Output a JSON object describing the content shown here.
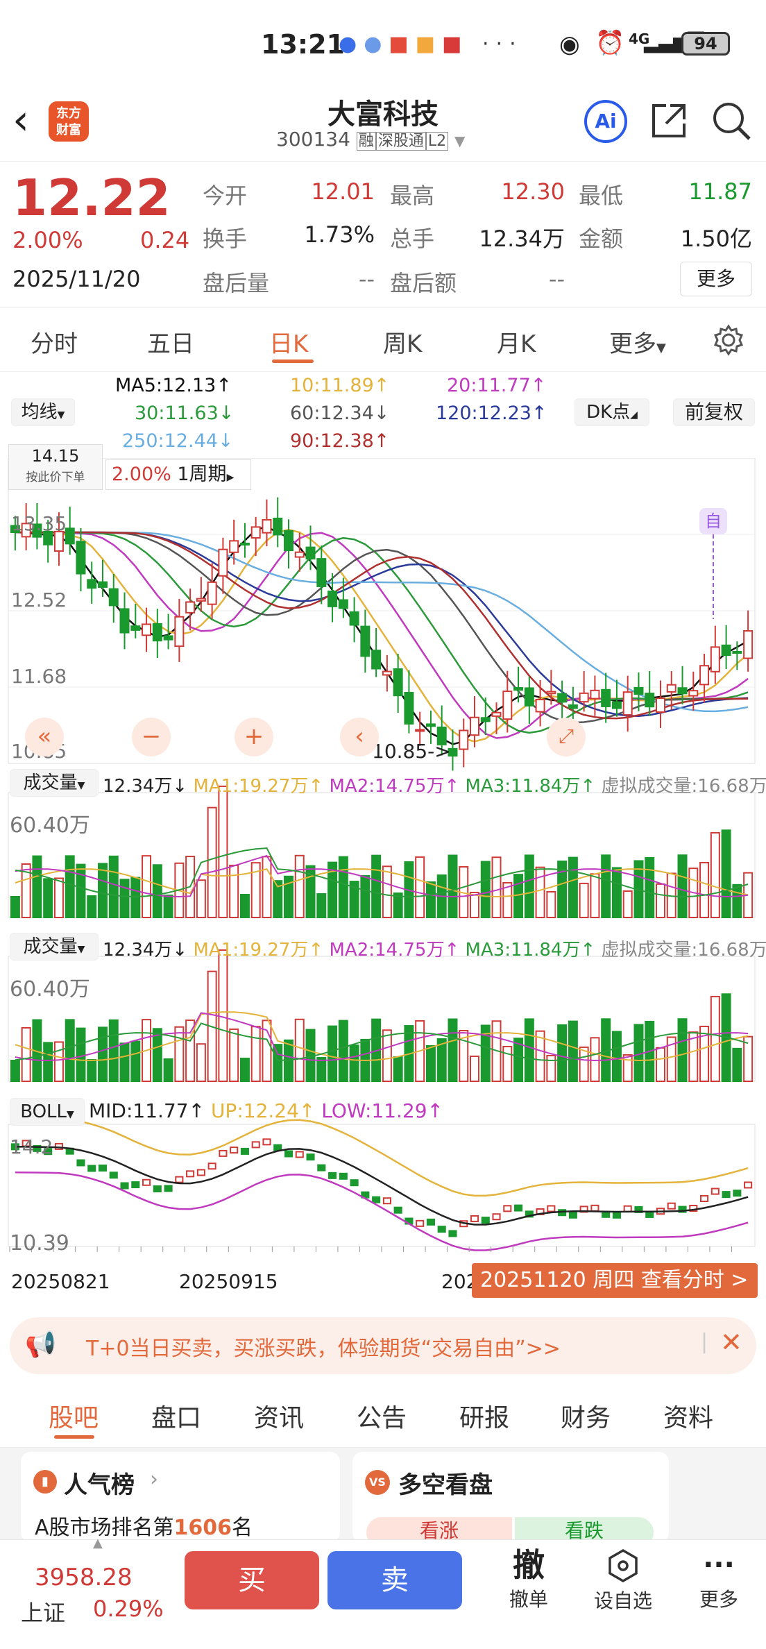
{
  "status": {
    "time": "13:21",
    "battery": "94",
    "network": "4G"
  },
  "header": {
    "title": "大富科技",
    "code": "300134",
    "tag_rong": "融",
    "tag_connect": "深股通",
    "tag_level": "L2",
    "logo_line1": "东方",
    "logo_line2": "财富",
    "ai_label": "Ai"
  },
  "quote": {
    "price": "12.22",
    "pct": "2.00%",
    "chg": "0.24",
    "date": "2025/11/20",
    "open_label": "今开",
    "open": "12.01",
    "high_label": "最高",
    "high": "12.30",
    "low_label": "最低",
    "low": "11.87",
    "turnover_label": "换手",
    "turnover": "1.73%",
    "volume_label": "总手",
    "volume": "12.34万",
    "amount_label": "金额",
    "amount": "1.50亿",
    "after_vol_label": "盘后量",
    "after_vol": "--",
    "after_amt_label": "盘后额",
    "after_amt": "--",
    "more": "更多"
  },
  "tabs": [
    "分时",
    "五日",
    "日K",
    "周K",
    "月K",
    "更多"
  ],
  "ma": {
    "selector": "均线",
    "ma5": "MA5:12.13↑",
    "ma10": "10:11.89↑",
    "ma20": "20:11.77↑",
    "ma30": "30:11.63↓",
    "ma60": "60:12.34↓",
    "ma120": "120:12.23↑",
    "ma250": "250:12.44↓",
    "ma90": "90:12.38↑",
    "dk": "DK点",
    "adjust": "前复权"
  },
  "kline": {
    "y_labels": [
      "13.35",
      "12.52",
      "11.68",
      "10.85"
    ],
    "top_price": "14.15",
    "top_hint": "按此价下单",
    "period_pct": "2.00%",
    "period": "1周期",
    "low_marker": "10.85->",
    "self_marker": "自"
  },
  "vol1": {
    "selector": "成交量",
    "value": "12.34万↓",
    "ma1": "MA1:19.27万↑",
    "ma2": "MA2:14.75万↑",
    "ma3": "MA3:11.84万↑",
    "virtual": "虚拟成交量:16.68万",
    "ymax": "60.40万"
  },
  "vol2": {
    "selector": "成交量",
    "value": "12.34万↓",
    "ma1": "MA1:19.27万↑",
    "ma2": "MA2:14.75万↑",
    "ma3": "MA3:11.84万↑",
    "virtual": "虚拟成交量:16.68万",
    "ymax": "60.40万"
  },
  "boll": {
    "selector": "BOLL",
    "mid": "MID:11.77↑",
    "up": "UP:12.24↑",
    "low": "LOW:11.29↑",
    "ytop": "14.2",
    "ybot": "10.39"
  },
  "xaxis": {
    "d1": "20250821",
    "d2": "20250915",
    "d3": "202",
    "tip": "20251120 周四 查看分时 >"
  },
  "banner": {
    "text": "T+0当日买卖，买涨买跌，体验期货“交易自由”>>"
  },
  "subtabs": [
    "股吧",
    "盘口",
    "资讯",
    "公告",
    "研报",
    "财务",
    "资料"
  ],
  "cards": {
    "rank_title": "人气榜",
    "rank_prefix": "A股市场排名第",
    "rank_num": "1606",
    "rank_suffix": "名",
    "bull_title": "多空看盘",
    "bull_up": "看涨",
    "bull_down": "看跌"
  },
  "bottom": {
    "index_value": "3958.28",
    "index_name": "上证",
    "index_pct": "0.29%",
    "buy": "买",
    "sell": "卖",
    "cancel": "撤",
    "cancel_label": "撤单",
    "watch_label": "设自选",
    "more_label": "更多"
  },
  "colors": {
    "up": "#d03a36",
    "down": "#1a9a2e",
    "accent": "#e2693c",
    "buy": "#e0524c",
    "sell": "#4a73e8"
  }
}
